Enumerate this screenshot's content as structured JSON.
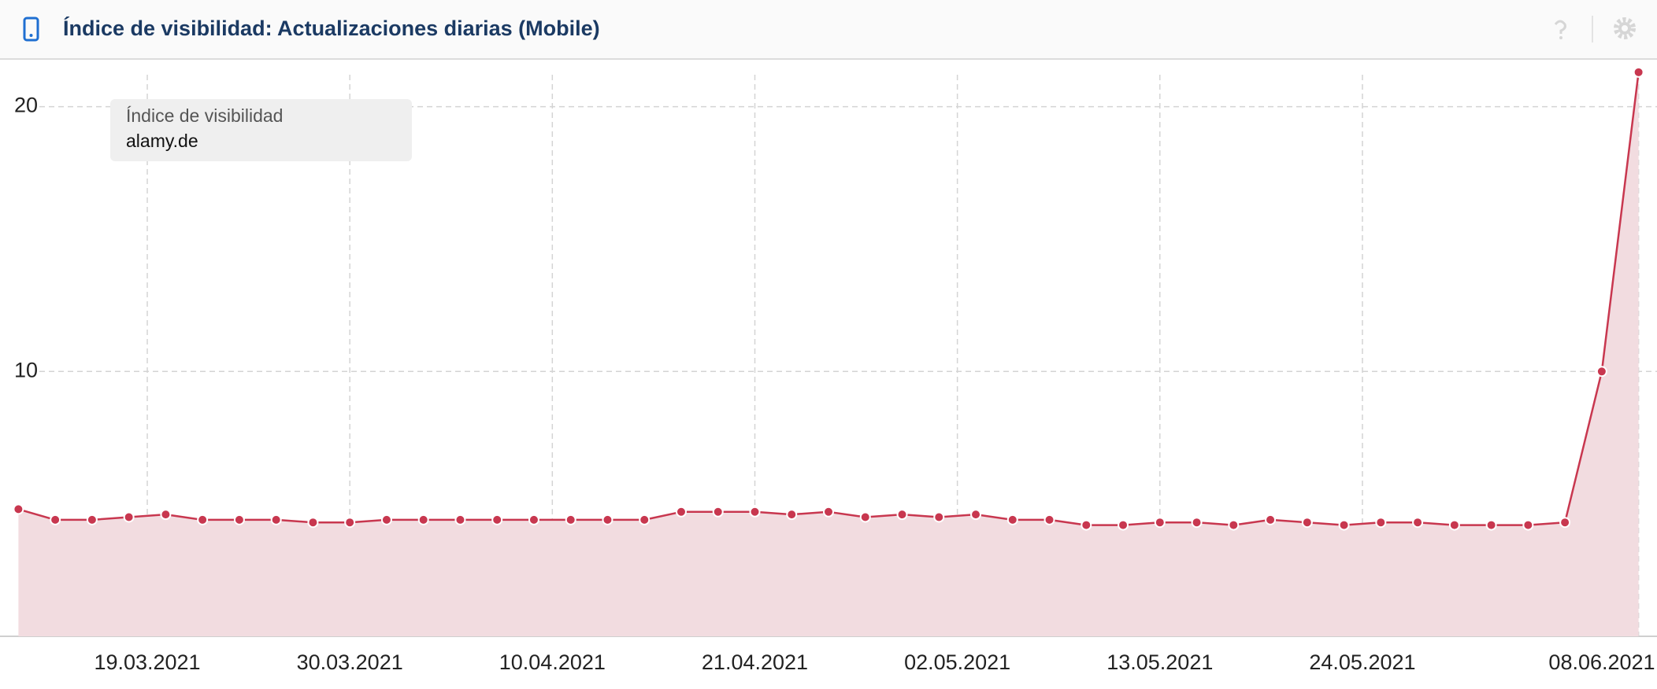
{
  "chart_data": {
    "type": "line",
    "title": "Índice de visibilidad: Actualizaciones diarias (Mobile)",
    "legend_title": "Índice de visibilidad",
    "x": [
      "2021-03-12",
      "2021-03-14",
      "2021-03-16",
      "2021-03-18",
      "2021-03-20",
      "2021-03-22",
      "2021-03-24",
      "2021-03-26",
      "2021-03-28",
      "2021-03-30",
      "2021-04-01",
      "2021-04-03",
      "2021-04-05",
      "2021-04-07",
      "2021-04-09",
      "2021-04-11",
      "2021-04-13",
      "2021-04-15",
      "2021-04-17",
      "2021-04-19",
      "2021-04-21",
      "2021-04-23",
      "2021-04-25",
      "2021-04-27",
      "2021-04-29",
      "2021-05-01",
      "2021-05-03",
      "2021-05-05",
      "2021-05-07",
      "2021-05-09",
      "2021-05-11",
      "2021-05-13",
      "2021-05-15",
      "2021-05-17",
      "2021-05-19",
      "2021-05-21",
      "2021-05-23",
      "2021-05-25",
      "2021-05-27",
      "2021-05-29",
      "2021-05-31",
      "2021-06-02",
      "2021-06-04",
      "2021-06-06",
      "2021-06-08"
    ],
    "series": [
      {
        "name": "alamy.de",
        "color": "#c8374f",
        "fill": "#f2dce0",
        "values": [
          4.8,
          4.4,
          4.4,
          4.5,
          4.6,
          4.4,
          4.4,
          4.4,
          4.3,
          4.3,
          4.4,
          4.4,
          4.4,
          4.4,
          4.4,
          4.4,
          4.4,
          4.4,
          4.7,
          4.7,
          4.7,
          4.6,
          4.7,
          4.5,
          4.6,
          4.5,
          4.6,
          4.4,
          4.4,
          4.2,
          4.2,
          4.3,
          4.3,
          4.2,
          4.4,
          4.3,
          4.2,
          4.3,
          4.3,
          4.2,
          4.2,
          4.2,
          4.3,
          10.0,
          21.3
        ]
      }
    ],
    "xlim": [
      "2021-03-11",
      "2021-06-09"
    ],
    "xticks": [
      {
        "value": "2021-03-19",
        "label": "19.03.2021"
      },
      {
        "value": "2021-03-30",
        "label": "30.03.2021"
      },
      {
        "value": "2021-04-10",
        "label": "10.04.2021"
      },
      {
        "value": "2021-04-21",
        "label": "21.04.2021"
      },
      {
        "value": "2021-05-02",
        "label": "02.05.2021"
      },
      {
        "value": "2021-05-13",
        "label": "13.05.2021"
      },
      {
        "value": "2021-05-24",
        "label": "24.05.2021"
      },
      {
        "value": "2021-06-08",
        "label": "08.06.2021"
      }
    ],
    "ylim": [
      0,
      21.8
    ],
    "yticks": [
      10,
      20
    ],
    "grid": true
  }
}
